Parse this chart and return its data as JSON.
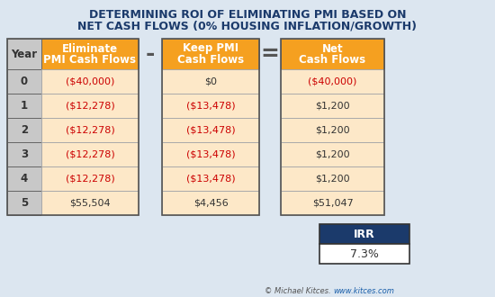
{
  "title_line1": "DETERMINING ROI OF ELIMINATING PMI BASED ON",
  "title_line2": "NET CASH FLOWS (0% HOUSING INFLATION/GROWTH)",
  "title_color": "#1b3a6b",
  "bg_color": "#dce6f0",
  "orange_header": "#f5a020",
  "cell_bg_light": "#fde8c8",
  "navy_blue": "#1b3a6b",
  "year_bg": "#c8c8c8",
  "years": [
    "0",
    "1",
    "2",
    "3",
    "4",
    "5"
  ],
  "eliminate_pmi": [
    "($40,000)",
    "($12,278)",
    "($12,278)",
    "($12,278)",
    "($12,278)",
    "$55,504"
  ],
  "eliminate_pmi_red": [
    true,
    true,
    true,
    true,
    true,
    false
  ],
  "keep_pmi": [
    "$0",
    "($13,478)",
    "($13,478)",
    "($13,478)",
    "($13,478)",
    "$4,456"
  ],
  "keep_pmi_red": [
    false,
    true,
    true,
    true,
    true,
    false
  ],
  "net_cash": [
    "($40,000)",
    "$1,200",
    "$1,200",
    "$1,200",
    "$1,200",
    "$51,047"
  ],
  "net_cash_red": [
    true,
    false,
    false,
    false,
    false,
    false
  ],
  "irr_value": "7.3%",
  "footer_text": "© Michael Kitces. ",
  "footer_link": "www.kitces.com",
  "red_color": "#cc0000",
  "dark_text": "#333333",
  "white": "#ffffff",
  "border_color": "#888888",
  "year_header": "Year",
  "col1_h1": "Eliminate",
  "col1_h2": "PMI Cash Flows",
  "col2_h1": "Keep PMI",
  "col2_h2": "Cash Flows",
  "col3_h1": "Net",
  "col3_h2": "Cash Flows",
  "irr_label": "IRR",
  "minus_sign": "-",
  "equals_sign": "="
}
